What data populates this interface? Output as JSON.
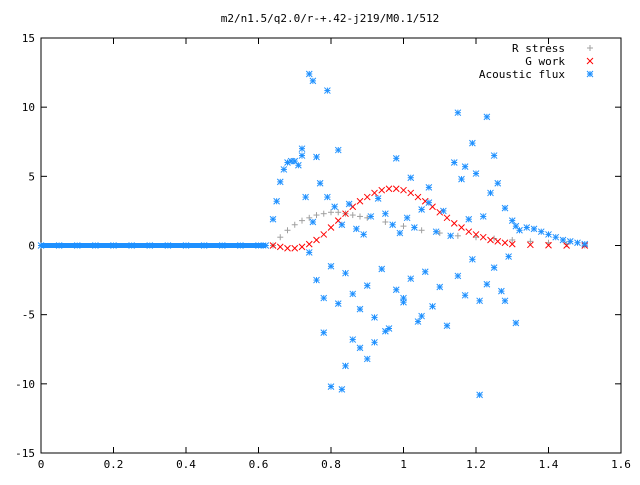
{
  "chart_data": {
    "type": "scatter",
    "title": "m2/n1.5/q2.0/r-+.42-j219/M0.1/512",
    "xlabel": "",
    "ylabel": "",
    "xlim": [
      0,
      1.6
    ],
    "ylim": [
      -15,
      15
    ],
    "x_ticks": [
      0,
      0.2,
      0.4,
      0.6,
      0.8,
      1,
      1.2,
      1.4,
      1.6
    ],
    "y_ticks": [
      -15,
      -10,
      -5,
      0,
      5,
      10,
      15
    ],
    "x_tick_labels": [
      "0",
      "0.2",
      "0.4",
      "0.6",
      "0.8",
      "1",
      "1.2",
      "1.4",
      "1.6"
    ],
    "y_tick_labels": [
      "-15",
      "-10",
      "-5",
      "0",
      "5",
      "10",
      "15"
    ],
    "grid": false,
    "legend_position": "top-right",
    "series": [
      {
        "name": "R stress",
        "marker": "+",
        "color": "#a0a0a0",
        "x": [
          0.64,
          0.66,
          0.68,
          0.7,
          0.72,
          0.74,
          0.76,
          0.78,
          0.8,
          0.82,
          0.84,
          0.86,
          0.88,
          0.9,
          0.95,
          1.0,
          1.05,
          1.1,
          1.15,
          1.2,
          1.25,
          1.3,
          1.35,
          1.4,
          1.45,
          1.5
        ],
        "y": [
          0.0,
          0.6,
          1.1,
          1.5,
          1.8,
          2.0,
          2.2,
          2.3,
          2.4,
          2.4,
          2.3,
          2.2,
          2.1,
          2.0,
          1.7,
          1.4,
          1.1,
          0.9,
          0.7,
          0.6,
          0.5,
          0.4,
          0.3,
          0.2,
          0.1,
          0.0
        ]
      },
      {
        "name": "G work",
        "marker": "x",
        "color": "#ff0000",
        "x": [
          0.64,
          0.66,
          0.68,
          0.7,
          0.72,
          0.74,
          0.76,
          0.78,
          0.8,
          0.82,
          0.84,
          0.86,
          0.88,
          0.9,
          0.92,
          0.94,
          0.96,
          0.98,
          1.0,
          1.02,
          1.04,
          1.06,
          1.08,
          1.1,
          1.12,
          1.14,
          1.16,
          1.18,
          1.2,
          1.22,
          1.24,
          1.26,
          1.28,
          1.3,
          1.35,
          1.4,
          1.45,
          1.5
        ],
        "y": [
          0.0,
          -0.1,
          -0.2,
          -0.2,
          -0.1,
          0.1,
          0.4,
          0.8,
          1.3,
          1.8,
          2.3,
          2.8,
          3.2,
          3.5,
          3.8,
          4.0,
          4.1,
          4.1,
          4.0,
          3.8,
          3.5,
          3.2,
          2.8,
          2.4,
          2.0,
          1.6,
          1.3,
          1.0,
          0.8,
          0.6,
          0.4,
          0.3,
          0.2,
          0.1,
          0.05,
          0.02,
          0.0,
          0.0
        ]
      },
      {
        "name": "Acoustic flux",
        "marker": "*",
        "color": "#1e90ff",
        "x": [
          0.0,
          0.05,
          0.1,
          0.15,
          0.2,
          0.25,
          0.3,
          0.35,
          0.4,
          0.45,
          0.5,
          0.55,
          0.6,
          0.62,
          0.64,
          0.65,
          0.66,
          0.67,
          0.68,
          0.69,
          0.7,
          0.71,
          0.72,
          0.73,
          0.74,
          0.75,
          0.76,
          0.77,
          0.78,
          0.79,
          0.8,
          0.81,
          0.82,
          0.83,
          0.84,
          0.85,
          0.86,
          0.87,
          0.88,
          0.89,
          0.9,
          0.91,
          0.92,
          0.93,
          0.94,
          0.95,
          0.96,
          0.97,
          0.98,
          0.99,
          1.0,
          1.01,
          1.02,
          1.03,
          1.04,
          1.05,
          1.06,
          1.07,
          1.08,
          1.09,
          1.1,
          1.11,
          1.12,
          1.13,
          1.14,
          1.15,
          1.16,
          1.17,
          1.18,
          1.19,
          1.2,
          1.21,
          1.22,
          1.23,
          1.24,
          1.25,
          1.26,
          1.27,
          1.28,
          1.29,
          1.3,
          1.31,
          1.32,
          1.34,
          1.36,
          1.38,
          1.4,
          1.42,
          1.44,
          1.46,
          1.48,
          1.5,
          0.74,
          0.75,
          0.79,
          0.82,
          0.84,
          0.83,
          0.72,
          0.78,
          0.76,
          0.8,
          0.86,
          0.88,
          0.9,
          0.92,
          0.95,
          0.98,
          1.0,
          1.02,
          1.05,
          1.07,
          1.15,
          1.17,
          1.19,
          1.21,
          1.23,
          1.25,
          1.28,
          1.31
        ],
        "y": [
          0,
          0,
          0,
          0,
          0,
          0,
          0,
          0,
          0,
          0,
          0,
          0,
          0,
          0,
          1.9,
          3.2,
          4.6,
          5.5,
          6.0,
          6.1,
          6.1,
          5.8,
          6.5,
          3.5,
          -0.5,
          1.7,
          -2.5,
          4.5,
          -3.8,
          3.5,
          -1.5,
          2.8,
          -4.2,
          1.5,
          -2.0,
          3.0,
          -3.5,
          1.2,
          -4.6,
          0.8,
          -2.9,
          2.1,
          -5.2,
          3.4,
          -1.7,
          2.3,
          -6.0,
          1.5,
          -3.2,
          0.9,
          -4.1,
          2.0,
          -2.4,
          1.3,
          -5.5,
          2.6,
          -1.9,
          3.1,
          -4.4,
          1.0,
          -3.0,
          2.5,
          -5.8,
          0.7,
          6.0,
          -2.2,
          4.8,
          -3.6,
          1.9,
          -1.0,
          5.2,
          -4.0,
          2.1,
          -2.8,
          3.8,
          -1.6,
          4.5,
          -3.3,
          2.7,
          -0.8,
          1.8,
          1.4,
          1.1,
          1.3,
          1.2,
          1.0,
          0.8,
          0.6,
          0.4,
          0.3,
          0.2,
          0.1,
          12.4,
          11.9,
          11.2,
          6.9,
          -8.7,
          -10.4,
          7.0,
          -6.3,
          6.4,
          -10.2,
          -6.8,
          -7.4,
          -8.2,
          -7.0,
          -6.2,
          6.3,
          -3.8,
          4.9,
          -5.1,
          4.2,
          9.6,
          5.7,
          7.4,
          -10.8,
          9.3,
          6.5,
          -4.0,
          -5.6
        ]
      }
    ]
  }
}
